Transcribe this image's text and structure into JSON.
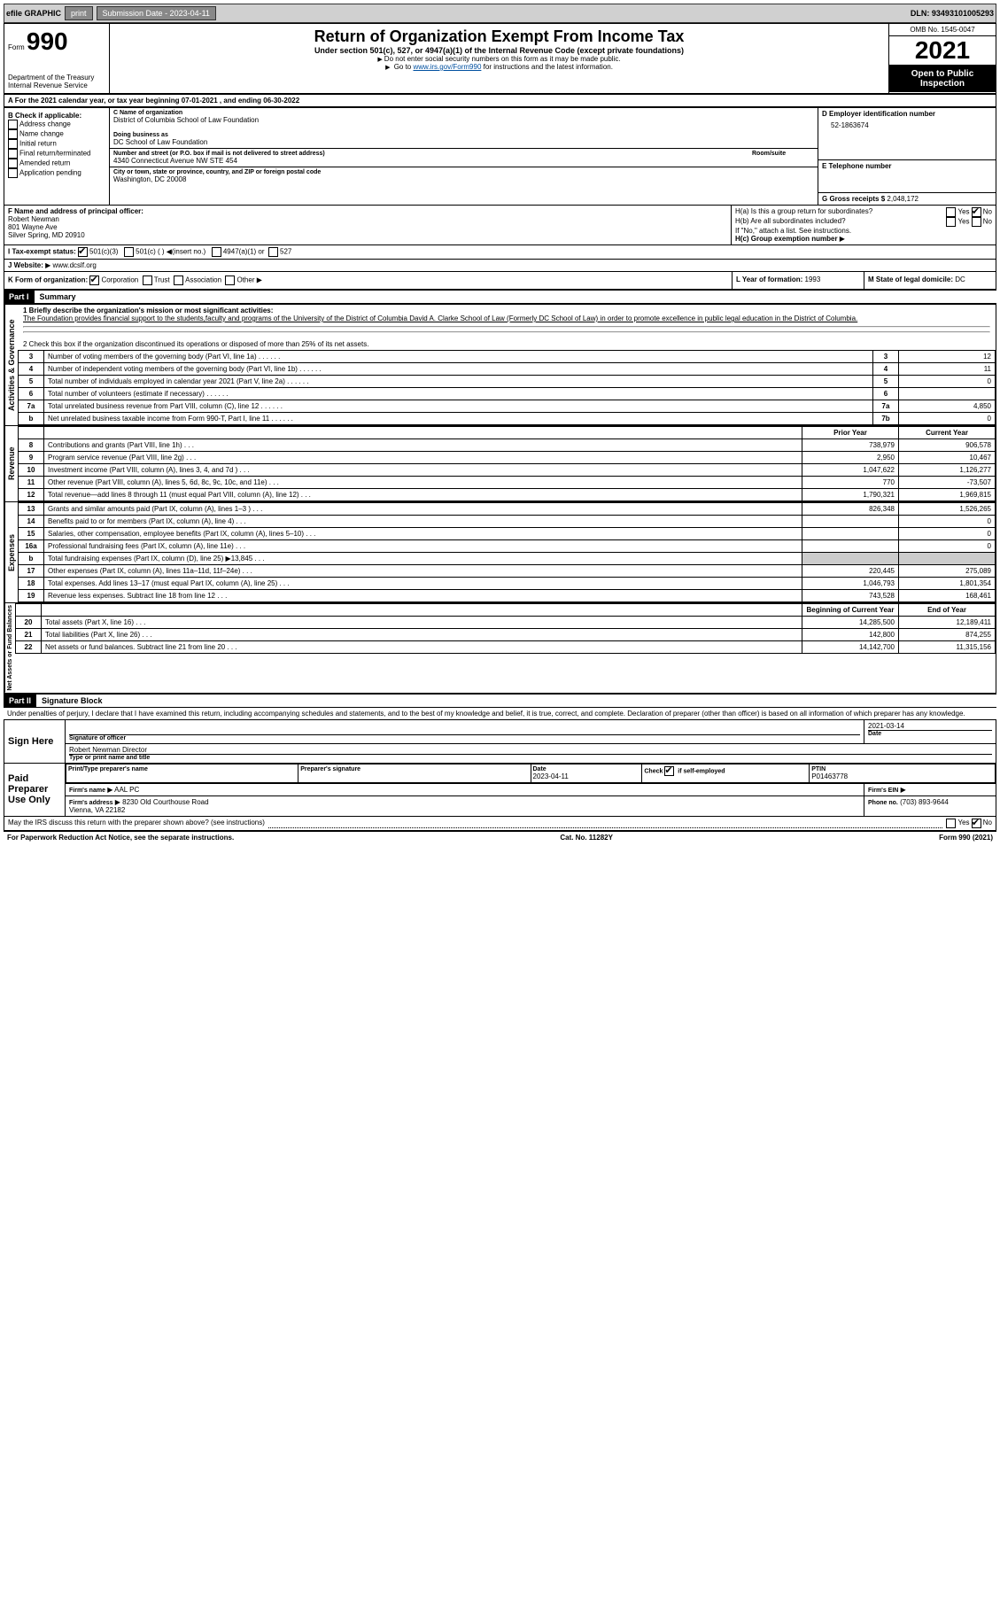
{
  "topbar": {
    "efile_label": "efile GRAPHIC",
    "print_btn": "print",
    "submission_label": "Submission Date - 2023-04-11",
    "dln_label": "DLN: 93493101005293"
  },
  "header": {
    "form_word": "Form",
    "form_num": "990",
    "dept": "Department of the Treasury\nInternal Revenue Service",
    "title": "Return of Organization Exempt From Income Tax",
    "subtitle": "Under section 501(c), 527, or 4947(a)(1) of the Internal Revenue Code (except private foundations)",
    "note1": "Do not enter social security numbers on this form as it may be made public.",
    "note2_prefix": "Go to ",
    "note2_link": "www.irs.gov/Form990",
    "note2_suffix": " for instructions and the latest information.",
    "omb": "OMB No. 1545-0047",
    "year": "2021",
    "inspection": "Open to Public Inspection"
  },
  "sectionA": {
    "text": "A For the 2021 calendar year, or tax year beginning 07-01-2021   , and ending 06-30-2022"
  },
  "boxB": {
    "label": "B Check if applicable:",
    "items": [
      "Address change",
      "Name change",
      "Initial return",
      "Final return/terminated",
      "Amended return",
      "Application pending"
    ]
  },
  "boxC": {
    "name_label": "C Name of organization",
    "name": "District of Columbia School of Law Foundation",
    "dba_label": "Doing business as",
    "dba": "DC School of Law Foundation",
    "street_label": "Number and street (or P.O. box if mail is not delivered to street address)",
    "street": "4340 Connecticut Avenue NW STE 454",
    "room_label": "Room/suite",
    "city_label": "City or town, state or province, country, and ZIP or foreign postal code",
    "city": "Washington, DC  20008"
  },
  "boxD": {
    "label": "D Employer identification number",
    "value": "52-1863674"
  },
  "boxE": {
    "label": "E Telephone number",
    "value": ""
  },
  "boxG": {
    "label": "G Gross receipts $",
    "value": "2,048,172"
  },
  "boxF": {
    "label": "F  Name and address of principal officer:",
    "name": "Robert Newman",
    "addr1": "801 Wayne Ave",
    "addr2": "Silver Spring, MD  20910"
  },
  "boxH": {
    "ha_label": "H(a)  Is this a group return for subordinates?",
    "hb_label": "H(b)  Are all subordinates included?",
    "hb_note": "If \"No,\" attach a list. See instructions.",
    "hc_label": "H(c)  Group exemption number",
    "yes": "Yes",
    "no": "No"
  },
  "boxI": {
    "label": "I    Tax-exempt status:",
    "c3": "501(c)(3)",
    "c_other": "501(c) (  )",
    "insert": "(insert no.)",
    "a1": "4947(a)(1) or",
    "s527": "527"
  },
  "boxJ": {
    "label": "J   Website:",
    "value": "www.dcslf.org"
  },
  "boxK": {
    "label": "K Form of organization:",
    "corp": "Corporation",
    "trust": "Trust",
    "assoc": "Association",
    "other": "Other"
  },
  "boxL": {
    "label": "L Year of formation:",
    "value": "1993"
  },
  "boxM": {
    "label": "M State of legal domicile:",
    "value": "DC"
  },
  "part1": {
    "header": "Part I",
    "title": "Summary",
    "q1_label": "1  Briefly describe the organization's mission or most significant activities:",
    "q1_text": "The Foundation provides financial support to the students,faculty and programs of the University of the District of Columbia David A. Clarke School of Law (Formerly DC School of Law) in order to promote excellence in public legal education in the District of Columbia.",
    "q2": "2   Check this box     if the organization discontinued its operations or disposed of more than 25% of its net assets.",
    "rows_ag": [
      {
        "n": "3",
        "label": "Number of voting members of the governing body (Part VI, line 1a)",
        "box": "3",
        "val": "12"
      },
      {
        "n": "4",
        "label": "Number of independent voting members of the governing body (Part VI, line 1b)",
        "box": "4",
        "val": "11"
      },
      {
        "n": "5",
        "label": "Total number of individuals employed in calendar year 2021 (Part V, line 2a)",
        "box": "5",
        "val": "0"
      },
      {
        "n": "6",
        "label": "Total number of volunteers (estimate if necessary)",
        "box": "6",
        "val": ""
      },
      {
        "n": "7a",
        "label": "Total unrelated business revenue from Part VIII, column (C), line 12",
        "box": "7a",
        "val": "4,850"
      },
      {
        "n": "b",
        "label": "Net unrelated business taxable income from Form 990-T, Part I, line 11",
        "box": "7b",
        "val": "0"
      }
    ],
    "col_prior": "Prior Year",
    "col_current": "Current Year",
    "revenue_rows": [
      {
        "n": "8",
        "label": "Contributions and grants (Part VIII, line 1h)",
        "prior": "738,979",
        "cur": "906,578"
      },
      {
        "n": "9",
        "label": "Program service revenue (Part VIII, line 2g)",
        "prior": "2,950",
        "cur": "10,467"
      },
      {
        "n": "10",
        "label": "Investment income (Part VIII, column (A), lines 3, 4, and 7d )",
        "prior": "1,047,622",
        "cur": "1,126,277"
      },
      {
        "n": "11",
        "label": "Other revenue (Part VIII, column (A), lines 5, 6d, 8c, 9c, 10c, and 11e)",
        "prior": "770",
        "cur": "-73,507"
      },
      {
        "n": "12",
        "label": "Total revenue—add lines 8 through 11 (must equal Part VIII, column (A), line 12)",
        "prior": "1,790,321",
        "cur": "1,969,815"
      }
    ],
    "expense_rows": [
      {
        "n": "13",
        "label": "Grants and similar amounts paid (Part IX, column (A), lines 1–3 )",
        "prior": "826,348",
        "cur": "1,526,265"
      },
      {
        "n": "14",
        "label": "Benefits paid to or for members (Part IX, column (A), line 4)",
        "prior": "",
        "cur": "0"
      },
      {
        "n": "15",
        "label": "Salaries, other compensation, employee benefits (Part IX, column (A), lines 5–10)",
        "prior": "",
        "cur": "0"
      },
      {
        "n": "16a",
        "label": "Professional fundraising fees (Part IX, column (A), line 11e)",
        "prior": "",
        "cur": "0"
      },
      {
        "n": "b",
        "label": "Total fundraising expenses (Part IX, column (D), line 25) ▶13,845",
        "prior": "SHADED",
        "cur": "SHADED"
      },
      {
        "n": "17",
        "label": "Other expenses (Part IX, column (A), lines 11a–11d, 11f–24e)",
        "prior": "220,445",
        "cur": "275,089"
      },
      {
        "n": "18",
        "label": "Total expenses. Add lines 13–17 (must equal Part IX, column (A), line 25)",
        "prior": "1,046,793",
        "cur": "1,801,354"
      },
      {
        "n": "19",
        "label": "Revenue less expenses. Subtract line 18 from line 12",
        "prior": "743,528",
        "cur": "168,461"
      }
    ],
    "col_begin": "Beginning of Current Year",
    "col_end": "End of Year",
    "net_rows": [
      {
        "n": "20",
        "label": "Total assets (Part X, line 16)",
        "prior": "14,285,500",
        "cur": "12,189,411"
      },
      {
        "n": "21",
        "label": "Total liabilities (Part X, line 26)",
        "prior": "142,800",
        "cur": "874,255"
      },
      {
        "n": "22",
        "label": "Net assets or fund balances. Subtract line 21 from line 20",
        "prior": "14,142,700",
        "cur": "11,315,156"
      }
    ],
    "vert_ag": "Activities & Governance",
    "vert_rev": "Revenue",
    "vert_exp": "Expenses",
    "vert_net": "Net Assets or Fund Balances"
  },
  "part2": {
    "header": "Part II",
    "title": "Signature Block",
    "declaration": "Under penalties of perjury, I declare that I have examined this return, including accompanying schedules and statements, and to the best of my knowledge and belief, it is true, correct, and complete. Declaration of preparer (other than officer) is based on all information of which preparer has any knowledge.",
    "sign_here": "Sign Here",
    "sig_officer": "Signature of officer",
    "sig_date": "2021-03-14",
    "date_label": "Date",
    "officer_name": "Robert Newman  Director",
    "type_name": "Type or print name and title",
    "paid_prep": "Paid Preparer Use Only",
    "prep_name_label": "Print/Type preparer's name",
    "prep_sig_label": "Preparer's signature",
    "prep_date_label": "Date",
    "prep_date": "2023-04-11",
    "check_self": "Check         if self-employed",
    "ptin_label": "PTIN",
    "ptin": "P01463778",
    "firm_name_label": "Firm's name",
    "firm_name": "AAL PC",
    "firm_ein_label": "Firm's EIN",
    "firm_addr_label": "Firm's address",
    "firm_addr": "8230 Old Courthouse Road\nVienna, VA  22182",
    "phone_label": "Phone no.",
    "phone": "(703) 893-9644",
    "discuss": "May the IRS discuss this return with the preparer shown above? (see instructions)"
  },
  "footer": {
    "left": "For Paperwork Reduction Act Notice, see the separate instructions.",
    "mid": "Cat. No. 11282Y",
    "right": "Form 990 (2021)"
  }
}
